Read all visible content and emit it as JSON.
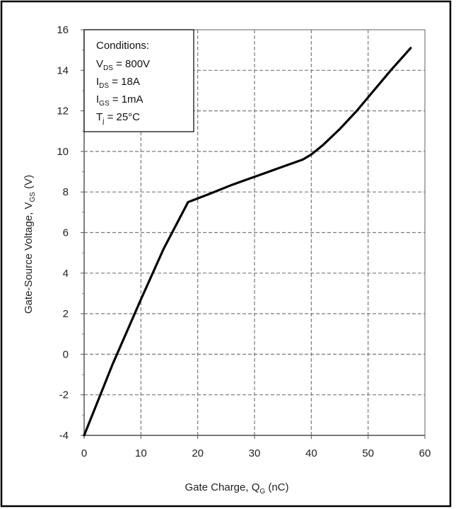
{
  "chart_data": {
    "type": "line",
    "title": "",
    "xlabel": {
      "main": "Gate Charge, Q",
      "sub": "G",
      "tail": " (nC)"
    },
    "ylabel": {
      "main": "Gate-Source Voltage, V",
      "sub": "GS",
      "tail": " (V)"
    },
    "xlim": [
      0,
      60
    ],
    "ylim": [
      -4,
      16
    ],
    "xticks": [
      "0",
      "10",
      "20",
      "30",
      "40",
      "50",
      "60"
    ],
    "yticks": [
      "16",
      "14",
      "12",
      "10",
      "8",
      "6",
      "4",
      "2",
      "0",
      "-2",
      "-4"
    ],
    "grid": true,
    "series": [
      {
        "color": "#000000",
        "x": [
          0,
          5,
          10,
          14,
          18.3,
          22,
          26,
          30,
          34,
          38.5,
          40,
          42,
          45,
          48,
          51,
          54,
          57.5
        ],
        "y": [
          -4,
          -0.5,
          2.7,
          5.2,
          7.5,
          7.9,
          8.35,
          8.75,
          9.15,
          9.6,
          9.85,
          10.3,
          11.1,
          12.0,
          13.0,
          14.0,
          15.1
        ]
      }
    ],
    "conditions": {
      "heading": "Conditions:",
      "lines": [
        {
          "main": "V",
          "sub": "DS",
          "tail": " = 800V"
        },
        {
          "main": "I",
          "sub": "DS",
          "tail": " = 18A"
        },
        {
          "main": "I",
          "sub": "GS",
          "tail": " = 1mA"
        },
        {
          "main": "T",
          "sub": "j",
          "tail": " = 25°C"
        }
      ]
    }
  }
}
